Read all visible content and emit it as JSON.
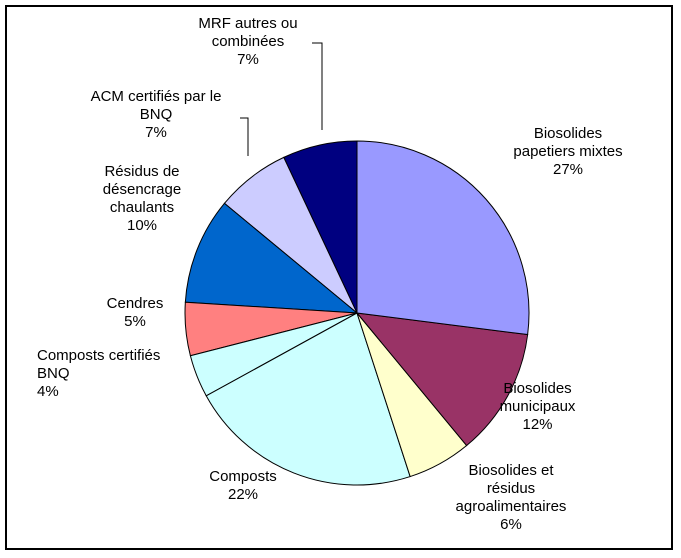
{
  "chart_data": {
    "type": "pie",
    "categories": [
      "Biosolides papetiers mixtes",
      "Biosolides municipaux",
      "Biosolides et résidus agroalimentaires",
      "Composts",
      "Composts certifiés BNQ",
      "Cendres",
      "Résidus de désencrage chaulants",
      "ACM certifiés par le BNQ",
      "MRF autres ou combinées"
    ],
    "values": [
      27,
      12,
      6,
      22,
      4,
      5,
      10,
      7,
      7
    ],
    "value_labels": [
      "27%",
      "12%",
      "6%",
      "22%",
      "4%",
      "5%",
      "10%",
      "7%",
      "7%"
    ],
    "colors": [
      "#9999ff",
      "#993366",
      "#ffffcc",
      "#ccffff",
      "#ccffff",
      "#ff8080",
      "#0066cc",
      "#ccccff",
      "#000080"
    ]
  }
}
